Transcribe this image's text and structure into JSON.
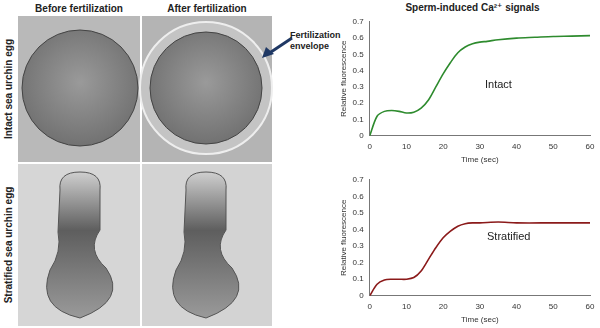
{
  "figure": {
    "columns": [
      "Before fertilization",
      "After fertilization"
    ],
    "rows": [
      "Intact sea urchin egg",
      "Stratified sea urchin egg"
    ],
    "annotation": "Fertilization envelope",
    "title": "Sperm-induced Ca²⁺ signals"
  },
  "chart_data": [
    {
      "type": "line",
      "x_label": "Time (sec)",
      "y_label": "Relative fluorescence",
      "x": [
        0,
        2,
        4,
        6,
        8,
        10,
        12,
        14,
        16,
        18,
        20,
        22,
        24,
        26,
        28,
        30,
        32,
        35,
        40,
        45,
        50,
        55,
        60
      ],
      "series": [
        {
          "name": "Intact",
          "color": "#2e8b2e",
          "values": [
            0,
            0.12,
            0.15,
            0.155,
            0.15,
            0.14,
            0.145,
            0.17,
            0.22,
            0.3,
            0.38,
            0.45,
            0.51,
            0.545,
            0.565,
            0.575,
            0.58,
            0.59,
            0.6,
            0.605,
            0.61,
            0.612,
            0.615
          ]
        }
      ],
      "xlim": [
        0,
        60
      ],
      "xticks": [
        0,
        10,
        20,
        30,
        40,
        50,
        60
      ],
      "ylim": [
        0,
        0.7
      ],
      "yticks": [
        0,
        0.1,
        0.2,
        0.3,
        0.4,
        0.5,
        0.6,
        0.7
      ],
      "grid": false
    },
    {
      "type": "line",
      "x_label": "Time (sec)",
      "y_label": "Relative fluorescence",
      "x": [
        0,
        2,
        4,
        6,
        8,
        10,
        12,
        14,
        16,
        18,
        20,
        22,
        24,
        26,
        28,
        30,
        35,
        40,
        50,
        60
      ],
      "series": [
        {
          "name": "Stratified",
          "color": "#8b1a1a",
          "values": [
            0,
            0.07,
            0.095,
            0.1,
            0.1,
            0.1,
            0.11,
            0.15,
            0.22,
            0.29,
            0.35,
            0.39,
            0.42,
            0.435,
            0.44,
            0.44,
            0.445,
            0.44,
            0.44,
            0.44
          ]
        }
      ],
      "xlim": [
        0,
        60
      ],
      "xticks": [
        0,
        10,
        20,
        30,
        40,
        50,
        60
      ],
      "ylim": [
        0,
        0.7
      ],
      "yticks": [
        0,
        0.1,
        0.2,
        0.3,
        0.4,
        0.5,
        0.6,
        0.7
      ],
      "grid": false
    }
  ]
}
